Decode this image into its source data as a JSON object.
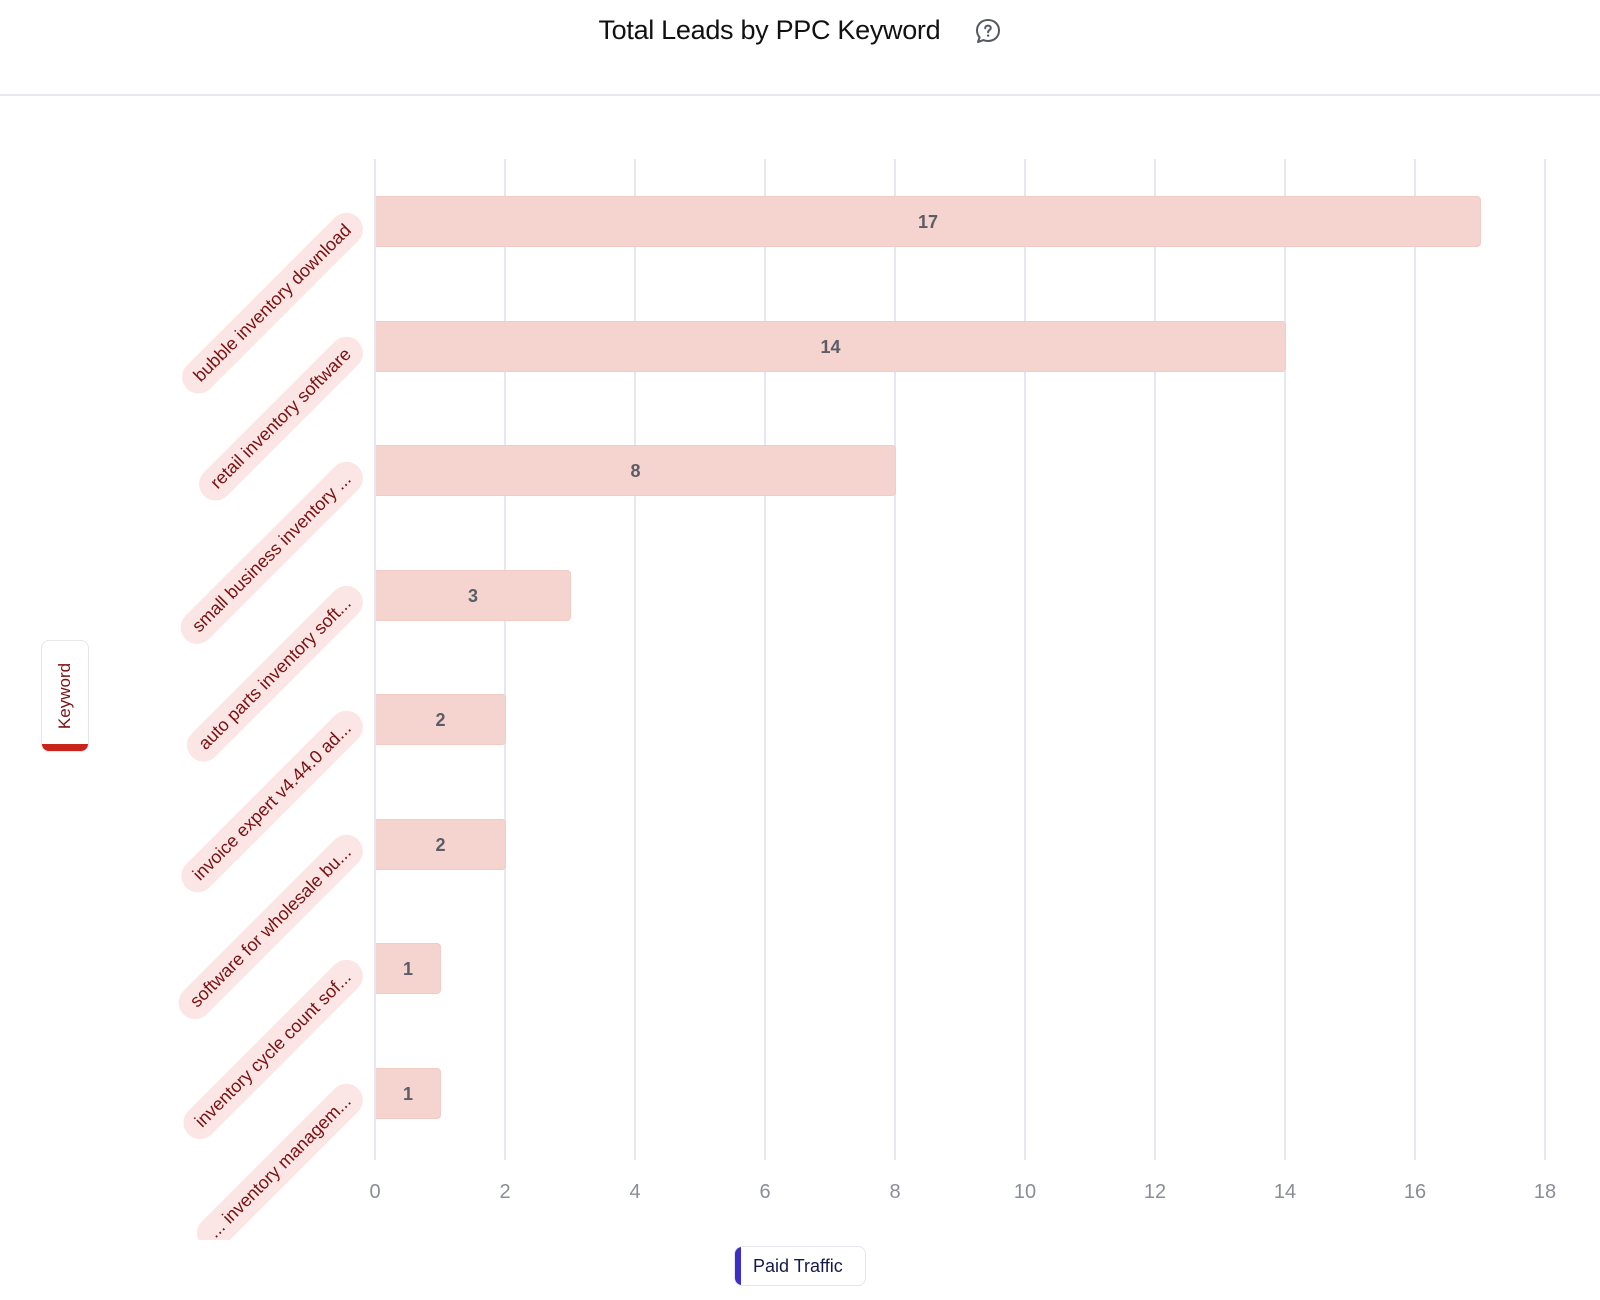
{
  "header": {
    "title": "Total Leads by PPC Keyword",
    "help_icon": "help-chat-bubble-icon"
  },
  "axis": {
    "y_label": "Keyword",
    "y_label_accent": "#c8241c"
  },
  "legend": {
    "items": [
      {
        "label": "Paid Traffic",
        "color": "#3b2fc4"
      }
    ]
  },
  "colors": {
    "bar_fill": "#f5d3ce",
    "category_pill_bg": "#fbe6e5",
    "category_text": "#7a1010",
    "gridline": "#e6e8f0"
  },
  "chart_data": {
    "type": "bar",
    "orientation": "horizontal",
    "title": "Total Leads by PPC Keyword",
    "xlabel": "",
    "ylabel": "Keyword",
    "categories": [
      "bubble inventory download",
      "retail inventory software",
      "small business inventory ...",
      "auto parts inventory soft...",
      "invoice expert v4.44.0 ad...",
      "software for wholesale bu...",
      "inventory cycle count sof...",
      "... inventory managem..."
    ],
    "series": [
      {
        "name": "Paid Traffic",
        "values": [
          17,
          14,
          8,
          3,
          2,
          2,
          1,
          1
        ]
      }
    ],
    "values": [
      17,
      14,
      8,
      3,
      2,
      2,
      1,
      1
    ],
    "xlim": [
      0,
      18
    ],
    "x_ticks": [
      "0",
      "2",
      "4",
      "6",
      "8",
      "10",
      "12",
      "14",
      "16",
      "18"
    ],
    "grid": "vertical",
    "legend_position": "bottom"
  }
}
